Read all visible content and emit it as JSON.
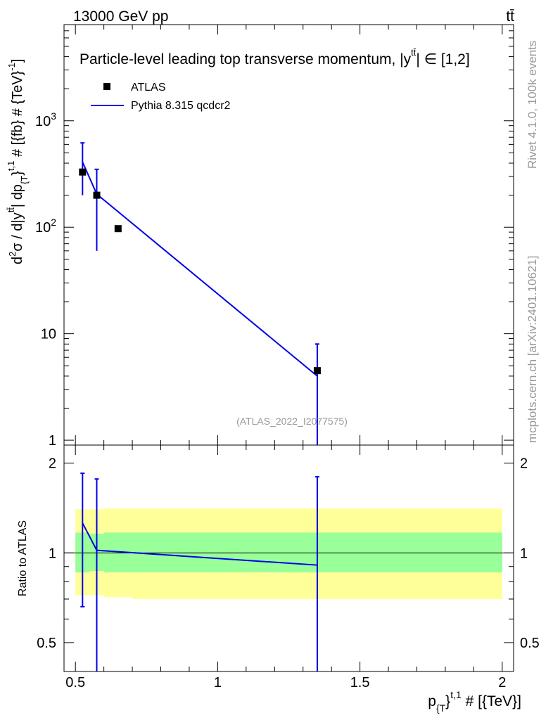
{
  "header": {
    "energy_label": "13000 GeV pp",
    "process_label": "tt̄"
  },
  "side_labels": {
    "rivet": "Rivet 4.1.0,  100k events",
    "mcplots": "mcplots.cern.ch [arXiv:2401.10621]"
  },
  "colors": {
    "mc_line": "#0000e6",
    "band_inner": "#99ff99",
    "band_outer": "#ffff99",
    "data_marker": "#000000",
    "watermark": "#999999"
  },
  "chart_data": [
    {
      "type": "scatter",
      "panel": "main",
      "title": "Particle-level leading top transverse momentum, |y^{tt̄}| ∈ [1,2]",
      "title_parts": {
        "prefix": "Particle-level leading top transverse momentum, |",
        "y": "y",
        "tt": "tt̄",
        "suffix": "| ∈ [1,2]"
      },
      "ylabel": "d²σ / d|y^{tt̄}| dp_{T}^{t,1} # [{fb} # {TeV}^{-1}]",
      "ylabel_parts": {
        "main": "d",
        "sq": "2",
        "sigma": "σ / d|y",
        "tt": "tt̄",
        "mid": "| dp",
        "sub": "{T",
        "supbrace": "}",
        "sup": "t,1",
        "tail": " # [{fb} # {TeV}",
        "exp": "-1",
        "end": "]"
      },
      "yscale": "log",
      "xlim": [
        0.46,
        2.04
      ],
      "ylim": [
        0.9,
        8000
      ],
      "y_ticks": [
        {
          "value": 1,
          "label": "1"
        },
        {
          "value": 10,
          "label": "10"
        },
        {
          "value": 100,
          "label": "10",
          "exp": "2"
        },
        {
          "value": 1000,
          "label": "10",
          "exp": "3"
        }
      ],
      "watermark": "(ATLAS_2022_I2077575)",
      "legend": {
        "position": "top-left",
        "data_label": "ATLAS",
        "mc_label": "Pythia 8.315 qcdcr2"
      },
      "series": [
        {
          "name": "ATLAS",
          "style": "markers",
          "x": [
            0.525,
            0.575,
            0.65,
            1.35
          ],
          "y": [
            330,
            200,
            97,
            4.5
          ]
        },
        {
          "name": "Pythia 8.315 qcdcr2",
          "style": "line",
          "x": [
            0.525,
            0.575,
            1.35
          ],
          "y": [
            410,
            205,
            4.0
          ],
          "err_lo": [
            200,
            60,
            0.9
          ],
          "err_hi": [
            620,
            350,
            8.0
          ]
        }
      ]
    },
    {
      "type": "line",
      "panel": "ratio",
      "ylabel": "Ratio to ATLAS",
      "xlabel": "p_{T}^{t,1} # [{TeV}]",
      "xlabel_parts": {
        "p": "p",
        "sub": "{T",
        "brace": "}",
        "sup": "t,1",
        "tail": " # [{TeV}]"
      },
      "xlim": [
        0.46,
        2.04
      ],
      "ylim": [
        0.4,
        2.3
      ],
      "x_ticks": [
        {
          "value": 0.5,
          "label": "0.5"
        },
        {
          "value": 1,
          "label": "1"
        },
        {
          "value": 1.5,
          "label": "1.5"
        },
        {
          "value": 2,
          "label": "2"
        }
      ],
      "y_ticks": [
        {
          "value": 0.5,
          "label": "0.5"
        },
        {
          "value": 1,
          "label": "1"
        },
        {
          "value": 2,
          "label": "2"
        }
      ],
      "bands": [
        {
          "x0": 0.5,
          "x1": 0.55,
          "inner": [
            0.86,
            1.17
          ],
          "outer": [
            0.72,
            1.4
          ]
        },
        {
          "x0": 0.55,
          "x1": 0.6,
          "inner": [
            0.87,
            1.16
          ],
          "outer": [
            0.72,
            1.4
          ]
        },
        {
          "x0": 0.6,
          "x1": 0.7,
          "inner": [
            0.86,
            1.17
          ],
          "outer": [
            0.71,
            1.41
          ]
        },
        {
          "x0": 0.7,
          "x1": 2.0,
          "inner": [
            0.86,
            1.17
          ],
          "outer": [
            0.7,
            1.41
          ]
        }
      ],
      "series": [
        {
          "name": "Pythia 8.315 qcdcr2",
          "x": [
            0.525,
            0.575,
            1.35
          ],
          "y": [
            1.26,
            1.02,
            0.91
          ],
          "err_lo": [
            0.66,
            0.3,
            0.3
          ],
          "err_hi": [
            1.85,
            1.77,
            1.8
          ]
        }
      ]
    }
  ]
}
